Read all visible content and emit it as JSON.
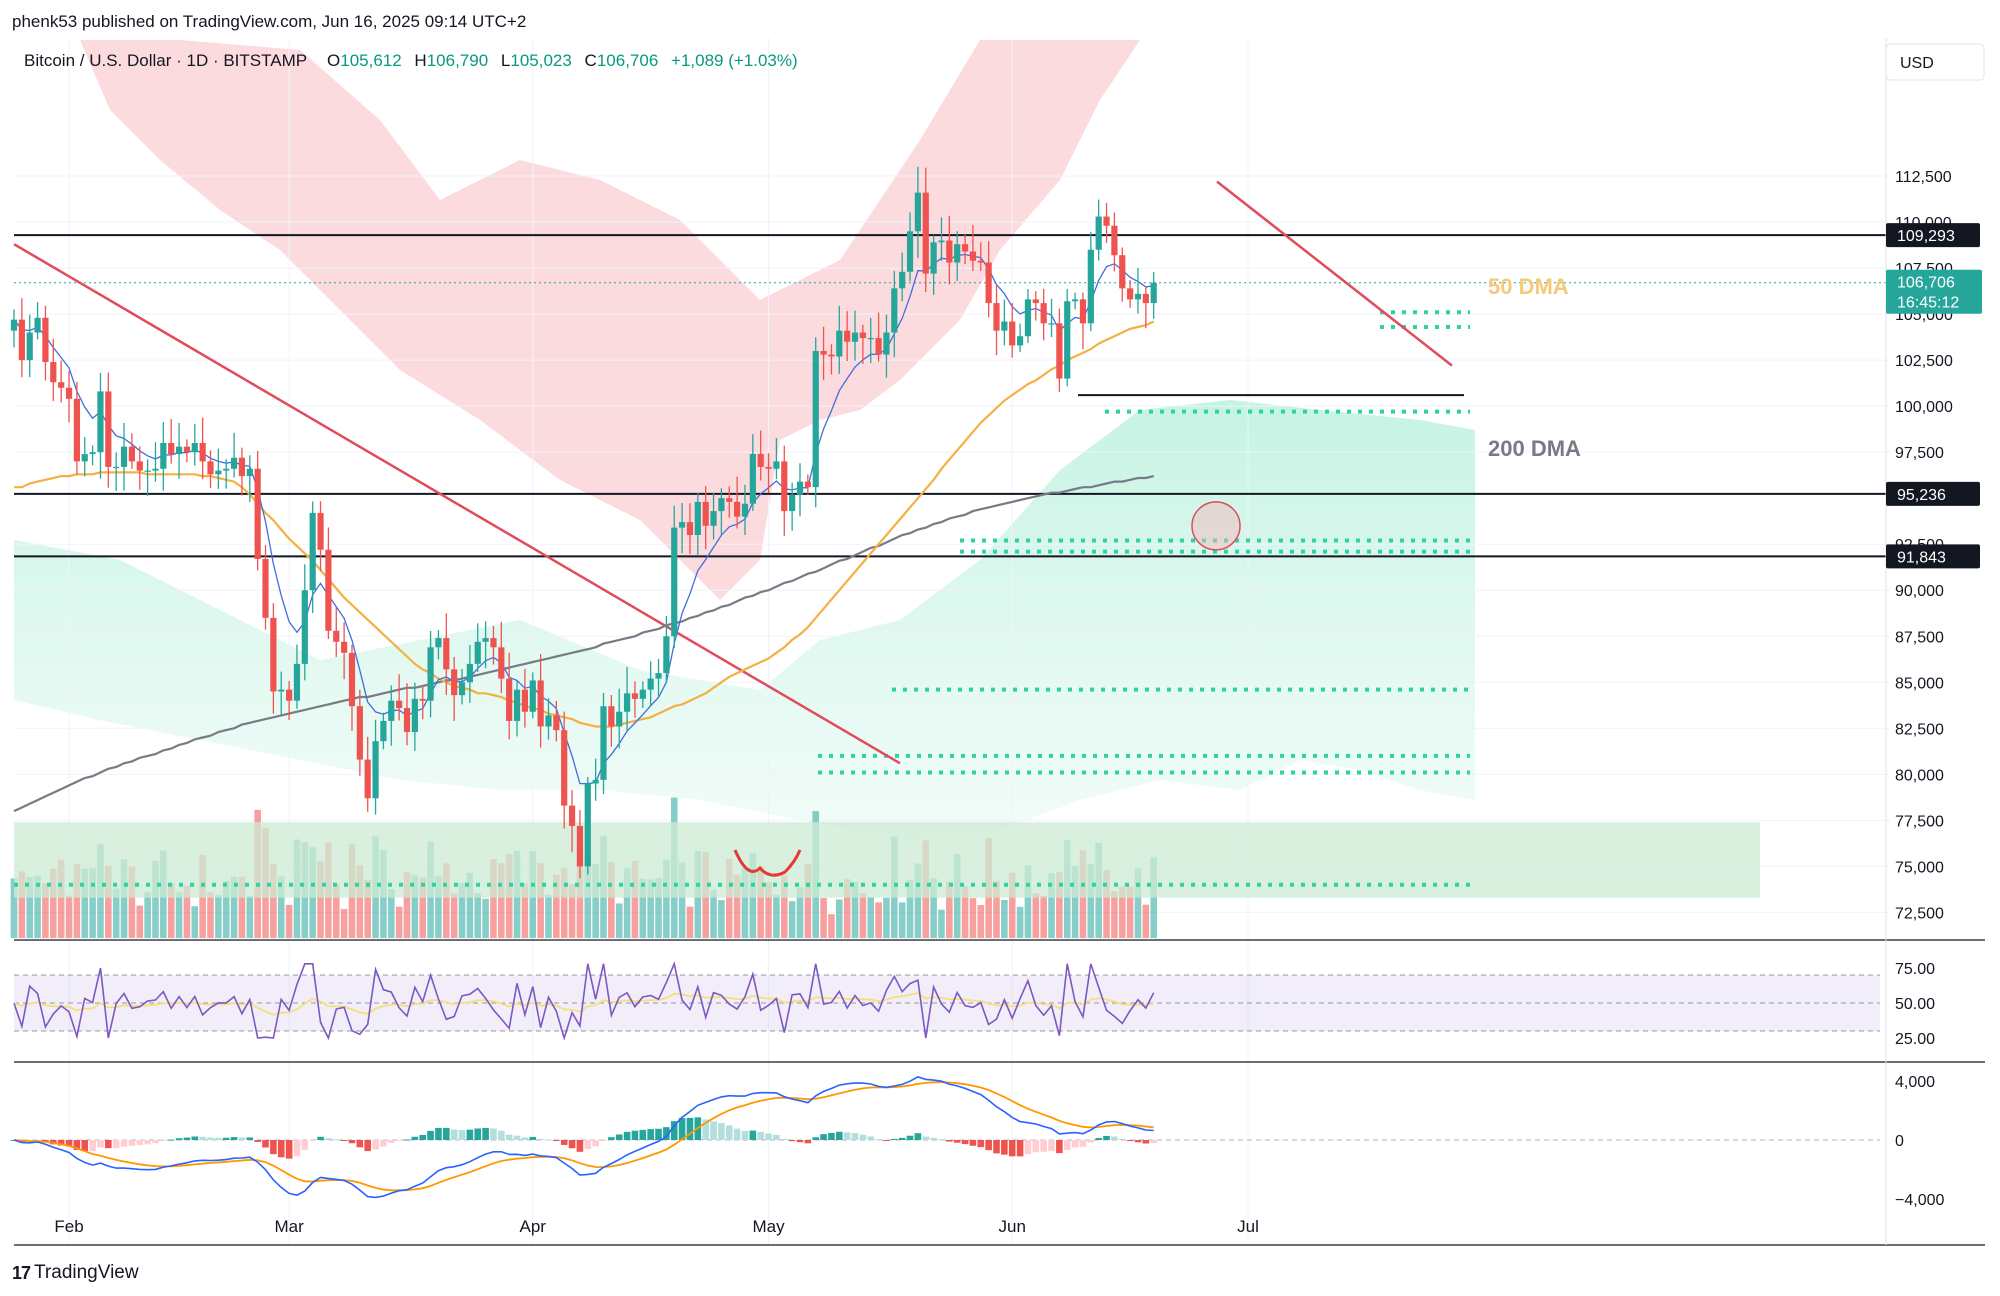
{
  "header": {
    "published": "phenk53 published on TradingView.com, Jun 16, 2025 09:14 UTC+2"
  },
  "legend": {
    "symbol": "Bitcoin / U.S. Dollar · 1D · BITSTAMP",
    "o_label": "O",
    "o": "105,612",
    "h_label": "H",
    "h": "106,790",
    "l_label": "L",
    "l": "105,023",
    "c_label": "C",
    "c": "106,706",
    "change": "+1,089 (+1.03%)"
  },
  "currency": "USD",
  "footer": {
    "brand": "TradingView",
    "logo": "17"
  },
  "colors": {
    "up": "#26a69a",
    "down": "#ef5350",
    "ma50": "#f5b042",
    "ma200": "#787b86",
    "rsi": "#7e57c2",
    "macd": "#2962ff",
    "signal": "#ff9800"
  },
  "price_badges": [
    {
      "label": "109,293",
      "value": 109293,
      "style": "dark"
    },
    {
      "label": "95,236",
      "value": 95236,
      "style": "dark"
    },
    {
      "label": "91,843",
      "value": 91843,
      "style": "dark"
    },
    {
      "label": "106,706",
      "sub": "16:45:12",
      "value": 106706,
      "style": "current"
    }
  ],
  "annotations": {
    "ma50": "50 DMA",
    "ma200": "200 DMA"
  },
  "rsi_labels": [
    "75.00",
    "50.00",
    "25.00"
  ],
  "macd_labels": [
    "4,000",
    "0",
    "−4,000"
  ],
  "chart_data": {
    "type": "candlestick",
    "ylim": [
      71000,
      120000
    ],
    "y_ticks": [
      {
        "v": 112500,
        "t": "112,500"
      },
      {
        "v": 110000,
        "t": "110,000"
      },
      {
        "v": 107500,
        "t": "107,500"
      },
      {
        "v": 105000,
        "t": "105,000"
      },
      {
        "v": 102500,
        "t": "102,500"
      },
      {
        "v": 100000,
        "t": "100,000"
      },
      {
        "v": 97500,
        "t": "97,500"
      },
      {
        "v": 92500,
        "t": "92,500"
      },
      {
        "v": 90000,
        "t": "90,000"
      },
      {
        "v": 87500,
        "t": "87,500"
      },
      {
        "v": 85000,
        "t": "85,000"
      },
      {
        "v": 82500,
        "t": "82,500"
      },
      {
        "v": 80000,
        "t": "80,000"
      },
      {
        "v": 77500,
        "t": "77,500"
      },
      {
        "v": 75000,
        "t": "75,000"
      },
      {
        "v": 72500,
        "t": "72,500"
      }
    ],
    "x_ticks": [
      {
        "day": 7,
        "t": "Feb"
      },
      {
        "day": 35,
        "t": "Mar"
      },
      {
        "day": 66,
        "t": "Apr"
      },
      {
        "day": 96,
        "t": "May"
      },
      {
        "day": 127,
        "t": "Jun"
      },
      {
        "day": 157,
        "t": "Jul"
      }
    ],
    "closes": [
      104700,
      102500,
      104000,
      104800,
      102400,
      101300,
      101000,
      100400,
      97000,
      97400,
      97500,
      100800,
      96700,
      96700,
      97800,
      97000,
      96500,
      96500,
      96600,
      98000,
      97400,
      97800,
      97500,
      98000,
      97000,
      96300,
      96500,
      96600,
      97200,
      96200,
      96600,
      91700,
      88500,
      84500,
      84600,
      84000,
      86000,
      90000,
      94200,
      92200,
      87800,
      87200,
      86600,
      83700,
      80800,
      78700,
      81800,
      82900,
      84000,
      83600,
      82300,
      84100,
      84000,
      86900,
      87400,
      85700,
      84300,
      85000,
      86000,
      87200,
      87400,
      86900,
      85200,
      82900,
      84600,
      83400,
      85100,
      82600,
      83200,
      82400,
      78300,
      77200,
      75000,
      79500,
      79700,
      83700,
      82600,
      83400,
      84400,
      84100,
      84600,
      85200,
      85500,
      87500,
      93400,
      93700,
      93000,
      94800,
      93500,
      94300,
      95000,
      94800,
      94000,
      94700,
      97400,
      96700,
      96600,
      97000,
      94300,
      95200,
      95900,
      95600,
      103000,
      102800,
      102700,
      104100,
      103500,
      104000,
      103700,
      103700,
      102800,
      104000,
      106400,
      107300,
      109500,
      111600,
      107200,
      108900,
      109000,
      107800,
      108800,
      108400,
      107900,
      107800,
      105600,
      104100,
      104600,
      103300,
      103800,
      105800,
      105600,
      104500,
      104500,
      101500,
      105700,
      105800,
      104500,
      108500,
      110300,
      109800,
      108200,
      106400,
      105800,
      106100,
      105600,
      106706
    ],
    "ma50": [
      95600,
      95600,
      95800,
      95900,
      96000,
      96100,
      96200,
      96200,
      96300,
      96300,
      96300,
      96400,
      96400,
      96400,
      96400,
      96400,
      96400,
      96300,
      96300,
      96300,
      96300,
      96300,
      96300,
      96300,
      96200,
      96200,
      96100,
      96000,
      95900,
      95600,
      95200,
      94700,
      94200,
      93800,
      93300,
      92800,
      92400,
      92000,
      91600,
      91100,
      90600,
      90100,
      89600,
      89200,
      88800,
      88400,
      88000,
      87600,
      87200,
      86800,
      86400,
      86000,
      85700,
      85500,
      85200,
      85000,
      84800,
      84700,
      84600,
      84400,
      84400,
      84300,
      84200,
      84000,
      83900,
      83700,
      83600,
      83500,
      83300,
      83200,
      83100,
      83000,
      82800,
      82700,
      82600,
      82600,
      82600,
      82700,
      82800,
      82900,
      83000,
      83100,
      83300,
      83500,
      83700,
      83800,
      84000,
      84200,
      84400,
      84700,
      85000,
      85300,
      85500,
      85700,
      85900,
      86100,
      86300,
      86600,
      86900,
      87300,
      87600,
      88000,
      88500,
      89000,
      89500,
      90000,
      90500,
      91000,
      91500,
      92000,
      92500,
      93000,
      93500,
      94000,
      94500,
      95000,
      95500,
      96000,
      96600,
      97100,
      97600,
      98100,
      98600,
      99100,
      99500,
      99900,
      100300,
      100600,
      100900,
      101200,
      101400,
      101700,
      102000,
      102200,
      102500,
      102700,
      102900,
      103100,
      103400,
      103600,
      103800,
      104000,
      104200,
      104300,
      104400,
      104600
    ],
    "ma200": [
      78000,
      78200,
      78400,
      78600,
      78800,
      79000,
      79200,
      79400,
      79600,
      79800,
      79900,
      80100,
      80300,
      80400,
      80600,
      80700,
      80900,
      81000,
      81100,
      81300,
      81400,
      81600,
      81700,
      81900,
      82000,
      82100,
      82300,
      82400,
      82500,
      82700,
      82800,
      82900,
      83000,
      83100,
      83200,
      83300,
      83400,
      83500,
      83600,
      83700,
      83800,
      83900,
      84000,
      84100,
      84200,
      84200,
      84300,
      84400,
      84500,
      84600,
      84700,
      84700,
      84800,
      84900,
      85000,
      85100,
      85100,
      85200,
      85300,
      85400,
      85500,
      85600,
      85700,
      85800,
      85900,
      86000,
      86100,
      86200,
      86300,
      86400,
      86500,
      86600,
      86700,
      86800,
      86900,
      87100,
      87200,
      87300,
      87400,
      87500,
      87700,
      87800,
      87900,
      88100,
      88200,
      88300,
      88500,
      88600,
      88800,
      88900,
      89100,
      89200,
      89400,
      89600,
      89700,
      89900,
      90000,
      90200,
      90400,
      90500,
      90700,
      90900,
      91000,
      91200,
      91400,
      91600,
      91700,
      91900,
      92100,
      92300,
      92400,
      92600,
      92800,
      93000,
      93100,
      93300,
      93400,
      93600,
      93700,
      93900,
      94000,
      94100,
      94300,
      94400,
      94500,
      94600,
      94700,
      94800,
      94900,
      95000,
      95100,
      95200,
      95300,
      95300,
      95400,
      95500,
      95600,
      95600,
      95700,
      95800,
      95900,
      95900,
      96000,
      96100,
      96100,
      96200
    ]
  }
}
